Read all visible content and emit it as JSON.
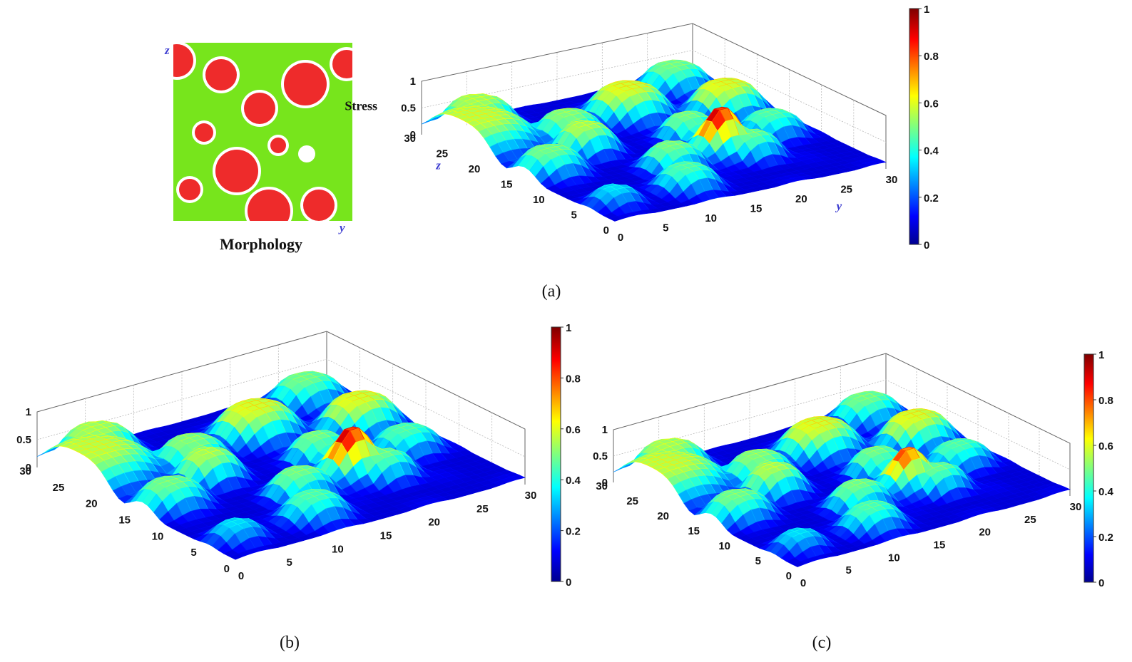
{
  "morphology": {
    "label": "Morphology",
    "axis_z": "z",
    "axis_y": "y",
    "colors": {
      "matrix": "#77e51c",
      "particle": "#ee2b2b",
      "interphase": "#ffffff"
    }
  },
  "captions": {
    "a": "(a)",
    "b": "(b)",
    "c": "(c)"
  },
  "colormap": "jet",
  "chart_data": [
    {
      "type": "surface",
      "panel": "(a)",
      "zlabel": "Stress",
      "xaxis_name": "y",
      "yaxis_name": "z",
      "x_ticks": [
        "0",
        "5",
        "10",
        "15",
        "20",
        "25",
        "30"
      ],
      "y_ticks": [
        "0",
        "5",
        "10",
        "15",
        "20",
        "25",
        "30"
      ],
      "z_ticks": [
        "0",
        "0.5",
        "1"
      ],
      "colorbar_ticks": [
        "0",
        "0.2",
        "0.4",
        "0.6",
        "0.8",
        "1"
      ],
      "xlim": [
        0,
        30
      ],
      "ylim": [
        0,
        30
      ],
      "zlim": [
        0,
        1
      ],
      "grid": true,
      "baseline": 0.1,
      "peak_max": 1.0
    },
    {
      "type": "surface",
      "panel": "(b)",
      "x_ticks": [
        "0",
        "5",
        "10",
        "15",
        "20",
        "25",
        "30"
      ],
      "y_ticks": [
        "0",
        "5",
        "10",
        "15",
        "20",
        "25",
        "30"
      ],
      "z_ticks": [
        "0",
        "0.5",
        "1"
      ],
      "colorbar_ticks": [
        "0",
        "0.2",
        "0.4",
        "0.6",
        "0.8",
        "1"
      ],
      "xlim": [
        0,
        30
      ],
      "ylim": [
        0,
        30
      ],
      "zlim": [
        0,
        1
      ],
      "grid": true,
      "baseline": 0.1,
      "peak_max": 1.0
    },
    {
      "type": "surface",
      "panel": "(c)",
      "x_ticks": [
        "0",
        "5",
        "10",
        "15",
        "20",
        "25",
        "30"
      ],
      "y_ticks": [
        "0",
        "5",
        "10",
        "15",
        "20",
        "25",
        "30"
      ],
      "z_ticks": [
        "0",
        "0.5",
        "1"
      ],
      "colorbar_ticks": [
        "0",
        "0.2",
        "0.4",
        "0.6",
        "0.8",
        "1"
      ],
      "xlim": [
        0,
        30
      ],
      "ylim": [
        0,
        30
      ],
      "zlim": [
        0,
        1
      ],
      "grid": true,
      "baseline": 0.1,
      "peak_max": 0.9
    }
  ]
}
